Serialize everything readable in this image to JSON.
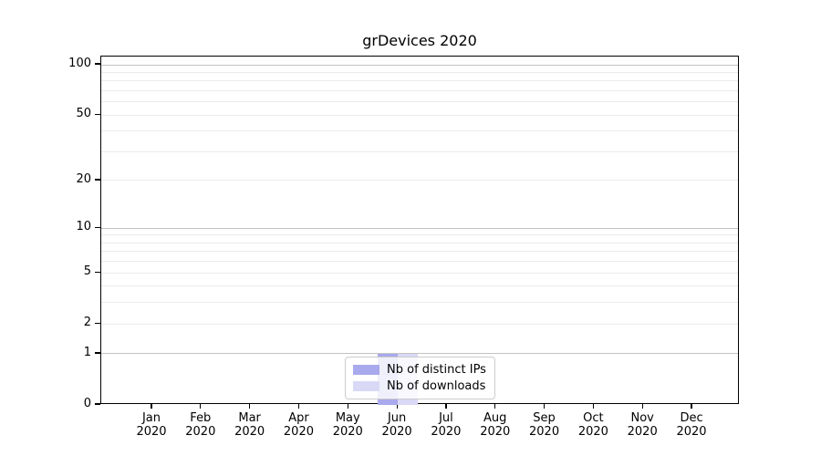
{
  "title": "grDevices 2020",
  "chart_data": {
    "type": "bar",
    "title": "grDevices 2020",
    "categories": [
      "Jan",
      "Feb",
      "Mar",
      "Apr",
      "May",
      "Jun",
      "Jul",
      "Aug",
      "Sep",
      "Oct",
      "Nov",
      "Dec"
    ],
    "year": "2020",
    "series": [
      {
        "name": "Nb of distinct IPs",
        "color": "#a9a9ed",
        "values": [
          0,
          0,
          0,
          0,
          0,
          1,
          0,
          0,
          0,
          0,
          0,
          0
        ]
      },
      {
        "name": "Nb of downloads",
        "color": "#d9d9f6",
        "values": [
          0,
          0,
          0,
          0,
          0,
          1,
          0,
          0,
          0,
          0,
          0,
          0
        ]
      }
    ],
    "xlabel": "",
    "ylabel": "",
    "yscale": "log1p",
    "ylim": [
      0,
      112
    ],
    "yticks": [
      0,
      1,
      2,
      5,
      10,
      20,
      50,
      100
    ],
    "grid_major": [
      1,
      10,
      100
    ],
    "grid_minor": [
      2,
      3,
      4,
      5,
      6,
      7,
      8,
      9,
      20,
      30,
      40,
      50,
      60,
      70,
      80,
      90
    ],
    "grid": "on",
    "legend_position": "bottom-center",
    "colors": {
      "grid_major": "#c3c3c3",
      "grid_minor": "#ebebeb",
      "spine": "#000000",
      "background": "#ffffff"
    }
  },
  "legend": {
    "items": [
      {
        "label": "Nb of distinct IPs",
        "color": "#a9a9ed"
      },
      {
        "label": "Nb of downloads",
        "color": "#d9d9f6"
      }
    ]
  }
}
